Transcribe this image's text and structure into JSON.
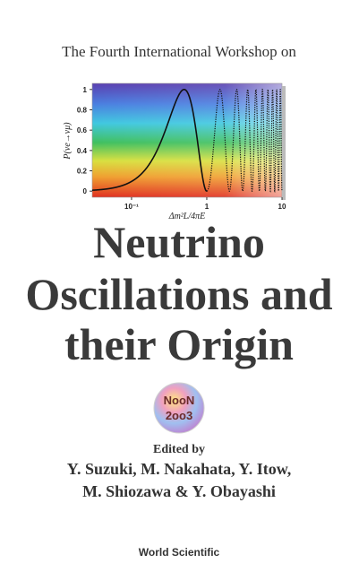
{
  "header": {
    "subtitle": "The Fourth International Workshop on"
  },
  "figure": {
    "type": "line",
    "y_label": "P(νe→νμ)",
    "x_label": "Δm²L/4πE",
    "log_x": true,
    "xlim": [
      0.03,
      10
    ],
    "ylim": [
      -0.06,
      1.06
    ],
    "xticks": [
      {
        "value": 0.1,
        "label": "10⁻¹"
      },
      1,
      10
    ],
    "yticks": [
      0,
      0.2,
      0.4,
      0.6,
      0.8,
      1
    ]
  },
  "title": {
    "lines": [
      "Neutrino",
      "Oscillations and",
      "their Origin"
    ]
  },
  "logo": {
    "lines": [
      "NooN",
      "2oo3"
    ]
  },
  "editors": {
    "label": "Edited by",
    "lines": [
      "Y. Suzuki, M. Nakahata, Y. Itow,",
      "M. Shiozawa & Y. Obayashi"
    ]
  },
  "publisher": "World Scientific"
}
